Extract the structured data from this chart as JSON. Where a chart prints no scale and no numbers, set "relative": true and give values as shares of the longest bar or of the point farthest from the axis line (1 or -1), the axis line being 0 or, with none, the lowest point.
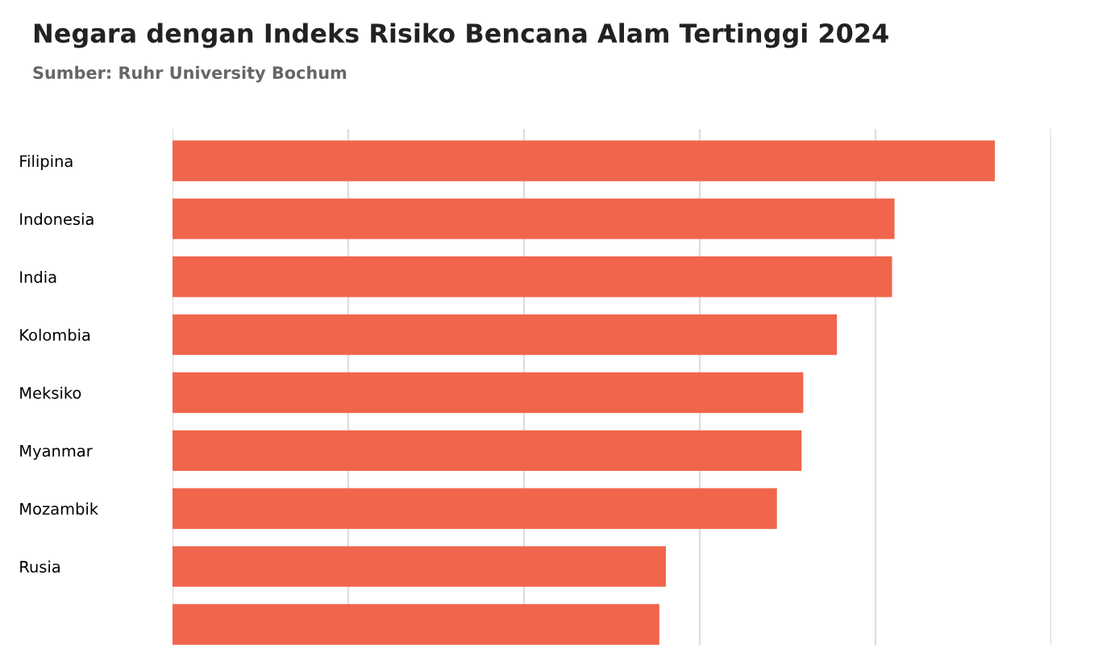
{
  "chart_data": {
    "type": "bar",
    "orientation": "horizontal",
    "relative": true,
    "title": "Negara dengan Indeks Risiko Bencana Alam Tertinggi 2024",
    "subtitle": "Sumber: Ruhr University Bochum",
    "categories": [
      "Filipina",
      "Indonesia",
      "India",
      "Kolombia",
      "Meksiko",
      "Myanmar",
      "Mozambik",
      "Rusia",
      null
    ],
    "values": [
      1,
      0.878,
      0.875,
      0.808,
      0.767,
      0.765,
      0.735,
      0.6,
      0.592
    ],
    "color": "#f0654b",
    "grid": "x"
  }
}
